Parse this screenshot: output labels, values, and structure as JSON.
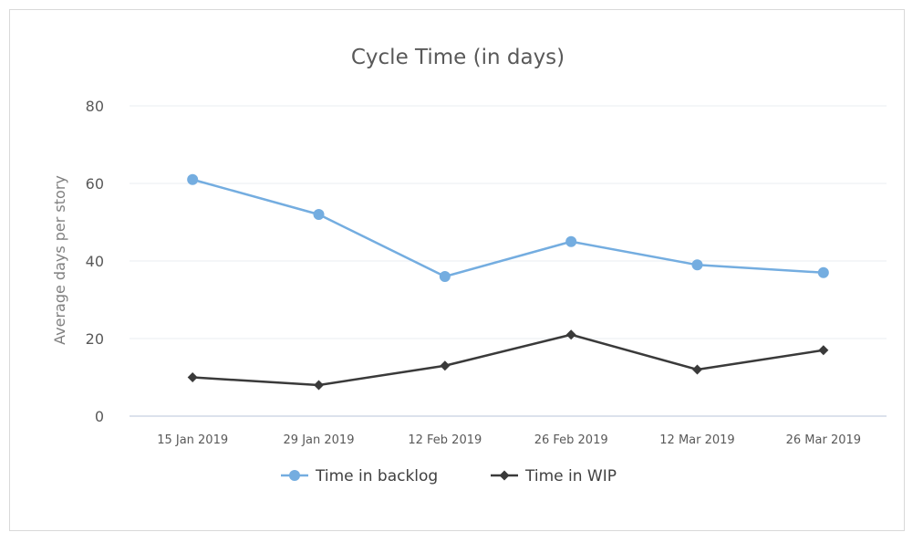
{
  "chart_data": {
    "type": "line",
    "title": "Cycle Time (in days)",
    "xlabel": "",
    "ylabel": "Average days per story",
    "ylim": [
      0,
      80
    ],
    "yticks": [
      0,
      20,
      40,
      60,
      80
    ],
    "categories": [
      "15 Jan 2019",
      "29 Jan 2019",
      "12 Feb 2019",
      "26 Feb 2019",
      "12 Mar 2019",
      "26 Mar 2019"
    ],
    "grid": true,
    "legend_position": "bottom",
    "series": [
      {
        "name": "Time in backlog",
        "values": [
          61,
          52,
          36,
          45,
          39,
          37
        ],
        "color": "#74ade0",
        "marker": "circle"
      },
      {
        "name": "Time in WIP",
        "values": [
          10,
          8,
          13,
          21,
          12,
          17
        ],
        "color": "#3a3a3a",
        "marker": "diamond"
      }
    ]
  }
}
